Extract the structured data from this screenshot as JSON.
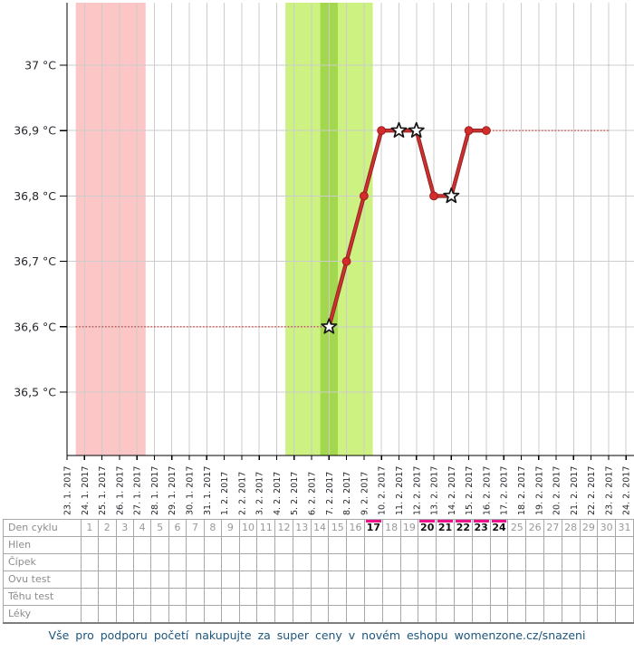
{
  "chart_data": {
    "type": "line",
    "unit": "°C",
    "grid": true,
    "x_dates": [
      "23. 1. 2017",
      "24. 1. 2017",
      "25. 1. 2017",
      "26. 1. 2017",
      "27. 1. 2017",
      "28. 1. 2017",
      "29. 1. 2017",
      "30. 1. 2017",
      "31. 1. 2017",
      "1. 2. 2017",
      "2. 2. 2017",
      "3. 2. 2017",
      "4. 2. 2017",
      "5. 2. 2017",
      "6. 2. 2017",
      "7. 2. 2017",
      "8. 2. 2017",
      "9. 2. 2017",
      "10. 2. 2017",
      "11. 2. 2017",
      "12. 2. 2017",
      "13. 2. 2017",
      "14. 2. 2017",
      "15. 2. 2017",
      "16. 2. 2017",
      "17. 2. 2017",
      "18. 2. 2017",
      "19. 2. 2017",
      "20. 2. 2017",
      "21. 2. 2017",
      "22. 2. 2017",
      "23. 2. 2017",
      "24. 2. 2017"
    ],
    "y_ticks": [
      37.0,
      36.9,
      36.8,
      36.7,
      36.6,
      36.5
    ],
    "y_tick_labels": [
      "37 °C",
      "36,9 °C",
      "36,8 °C",
      "36,7 °C",
      "36,6 °C",
      "36,5 °C"
    ],
    "ylim": [
      36.41,
      37.09
    ],
    "series": [
      {
        "name": "temperature-curve",
        "points": [
          {
            "date": "7. 2. 2017",
            "cycle_day": 16,
            "value": 36.6,
            "marker": "star"
          },
          {
            "date": "8. 2. 2017",
            "cycle_day": 17,
            "value": 36.7,
            "marker": "dot"
          },
          {
            "date": "9. 2. 2017",
            "cycle_day": 18,
            "value": 36.8,
            "marker": "dot"
          },
          {
            "date": "10. 2. 2017",
            "cycle_day": 19,
            "value": 36.9,
            "marker": "dot"
          },
          {
            "date": "11. 2. 2017",
            "cycle_day": 20,
            "value": 36.9,
            "marker": "star"
          },
          {
            "date": "12. 2. 2017",
            "cycle_day": 21,
            "value": 36.9,
            "marker": "star"
          },
          {
            "date": "13. 2. 2017",
            "cycle_day": 22,
            "value": 36.8,
            "marker": "dot"
          },
          {
            "date": "14. 2. 2017",
            "cycle_day": 23,
            "value": 36.8,
            "marker": "star"
          },
          {
            "date": "15. 2. 2017",
            "cycle_day": 24,
            "value": 36.9,
            "marker": "dot"
          },
          {
            "date": "16. 2. 2017",
            "cycle_day": 25,
            "value": 36.9,
            "marker": "dot"
          }
        ]
      }
    ],
    "dotted_segments": [
      {
        "value": 36.6,
        "from_date": "24. 1. 2017",
        "to_date": "7. 2. 2017",
        "from_band_edge": true
      },
      {
        "value": 36.9,
        "from_date": "16. 2. 2017",
        "to_date": "23. 2. 2017",
        "from_band_edge": false
      }
    ],
    "bands": [
      {
        "name": "menstruation",
        "from_date": "24. 1. 2017",
        "to_date": "27. 1. 2017",
        "color": "#fcc6c6"
      },
      {
        "name": "fertile-window",
        "from_date": "5. 2. 2017",
        "to_date": "9. 2. 2017",
        "color": "#cdf282"
      },
      {
        "name": "ovulation-day",
        "from_date": "7. 2. 2017",
        "to_date": "7. 2. 2017",
        "color": "#a3d74d"
      }
    ]
  },
  "table": {
    "row_labels": [
      "Den cyklu",
      "Hlen",
      "Čípek",
      "Ovu test",
      "Těhu test",
      "Léky"
    ],
    "days": [
      1,
      2,
      3,
      4,
      5,
      6,
      7,
      8,
      9,
      10,
      11,
      12,
      13,
      14,
      15,
      16,
      17,
      18,
      19,
      20,
      21,
      22,
      23,
      24,
      25,
      26,
      27,
      28,
      29,
      30,
      31
    ],
    "highlighted_days": [
      17,
      20,
      21,
      22,
      23,
      24
    ]
  },
  "footer": {
    "text": "Vše pro podporu početí nakupujte za super ceny v novém eshopu womenzone.cz/snazeni"
  },
  "colors": {
    "line": "#d13030",
    "line_edge": "#8e2424",
    "dot_fill": "#d42b2b",
    "dot_stroke": "#9c1f1f",
    "star_fill": "#ffffff",
    "star_stroke": "#161616",
    "dotted_line": "#c23333",
    "grid": "#cccccc",
    "axis": "#000000",
    "axis_text": "#27272f",
    "day_highlight": "#ec108c"
  }
}
